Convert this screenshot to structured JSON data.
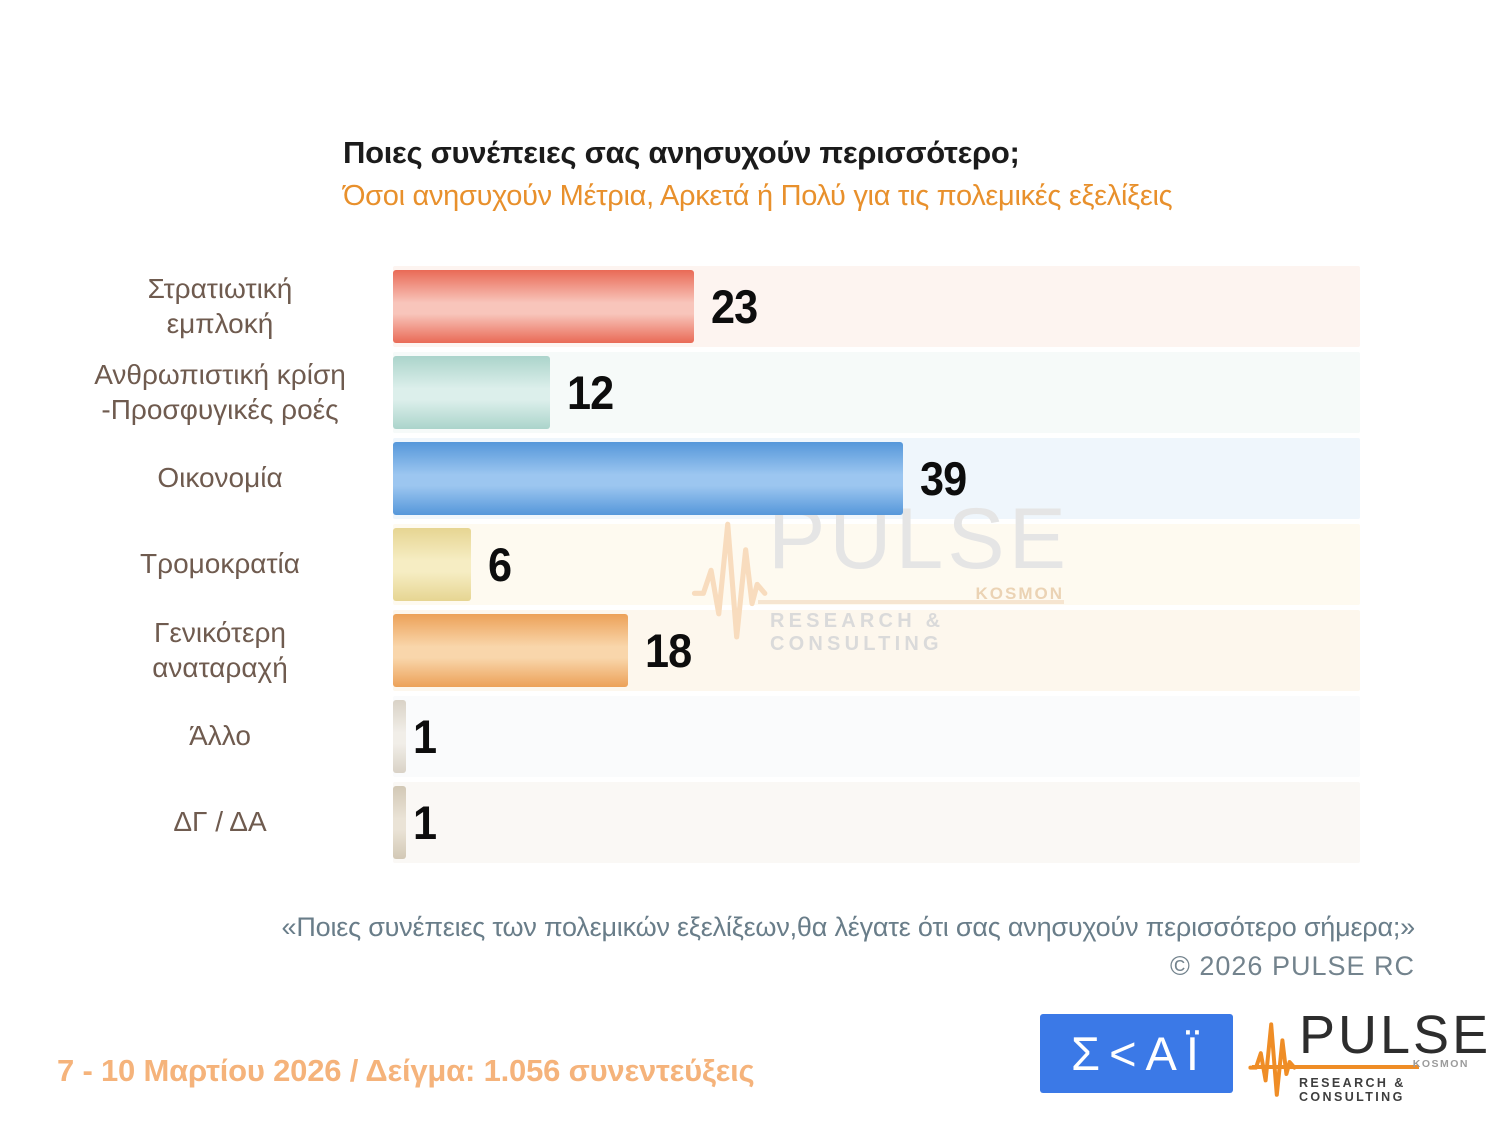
{
  "header": {
    "title": "Ποιες συνέπειες σας ανησυχούν περισσότερο;",
    "subtitle": "Όσοι ανησυχούν Μέτρια, Αρκετά ή Πολύ για τις πολεμικές εξελίξεις"
  },
  "chart_data": {
    "type": "bar",
    "orientation": "horizontal",
    "title": "Ποιες συνέπειες σας ανησυχούν περισσότερο;",
    "subtitle": "Όσοι ανησυχούν Μέτρια, Αρκετά ή Πολύ για τις πολεμικές εξελίξεις",
    "categories": [
      "Στρατιωτική\nεμπλοκή",
      "Ανθρωπιστική κρίση\n-Προσφυγικές ροές",
      "Οικονομία",
      "Τρομοκρατία",
      "Γενικότερη\nαναταραχή",
      "Άλλο",
      "ΔΓ / ΔΑ"
    ],
    "values": [
      23,
      12,
      39,
      6,
      18,
      1,
      1
    ],
    "xlim": [
      0,
      74
    ],
    "grid": false,
    "value_label_position": "end-of-bar",
    "bar_colors": [
      {
        "dark": "#e96a56",
        "light": "#f8c5bb"
      },
      {
        "dark": "#abd4cb",
        "light": "#dcefeb"
      },
      {
        "dark": "#5597da",
        "light": "#9cc6f0"
      },
      {
        "dark": "#e6d592",
        "light": "#f6edc3"
      },
      {
        "dark": "#eca158",
        "light": "#f9d6ab"
      },
      {
        "dark": "#d9d2c6",
        "light": "#f1eee8"
      },
      {
        "dark": "#d2c8b5",
        "light": "#eae3d6"
      }
    ],
    "row_backgrounds": [
      "#fdf4f0",
      "#f6faf9",
      "#eff6fc",
      "#fefaf0",
      "#fdf7ed",
      "#fafbfc",
      "#faf8f5"
    ]
  },
  "watermark": {
    "name": "PULSE",
    "kosmon": "KOSMON",
    "tagline": "RESEARCH & CONSULTING"
  },
  "footer": {
    "quote": "«Ποιες συνέπειες των πολεμικών εξελίξεων,θα λέγατε ότι σας ανησυχούν περισσότερο σήμερα;»",
    "copyright": "©  2026  PULSE RC",
    "fieldwork": "7 - 10  Μαρτίου 2026  /  Δείγμα:  1.056 συνεντεύξεις"
  },
  "logos": {
    "skai_text": "Σ<ΑΪ",
    "pulse": {
      "name": "PULSE",
      "kosmon": "KOSMON",
      "tagline": "RESEARCH & CONSULTING"
    }
  },
  "colors": {
    "title": "#1b1b1b",
    "subtitle_orange": "#e8902c",
    "category_label": "#6f5b4f",
    "value_number": "#0d0d0d",
    "quote_gray": "#697d89",
    "fieldwork_orange": "#f5b37b",
    "skai_blue": "#3b79e7",
    "pulse_orange": "#ef8d26"
  }
}
